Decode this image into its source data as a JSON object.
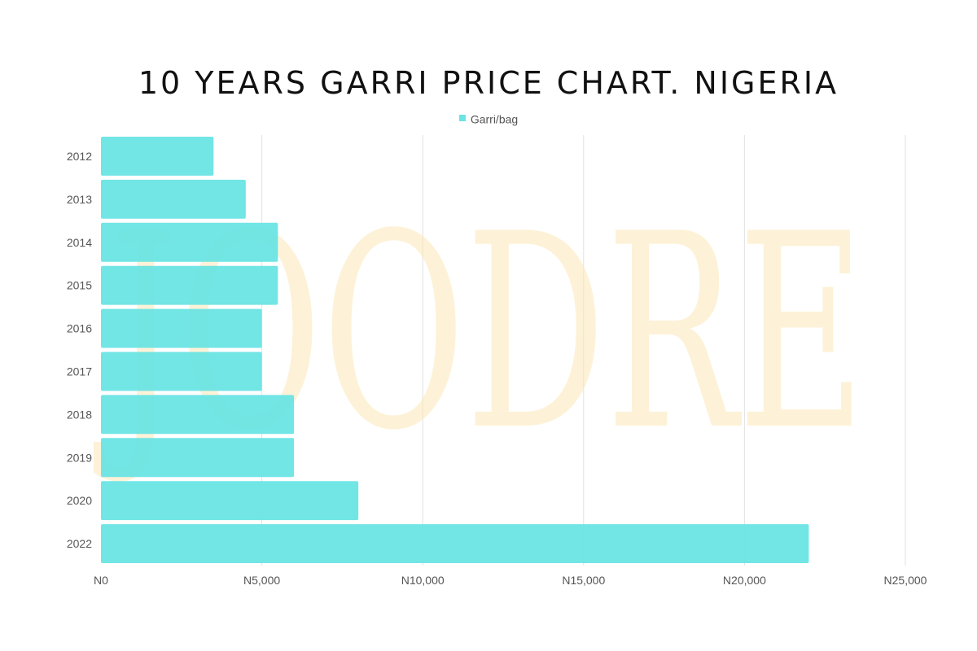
{
  "chart_data": {
    "type": "bar",
    "orientation": "horizontal",
    "title": "10 YEARS GARRI PRICE CHART. NIGERIA",
    "categories": [
      "2012",
      "2013",
      "2014",
      "2015",
      "2016",
      "2017",
      "2018",
      "2019",
      "2020",
      "2022"
    ],
    "series": [
      {
        "name": "Garri/bag",
        "values": [
          3500,
          4500,
          5500,
          5500,
          5000,
          5000,
          6000,
          6000,
          8000,
          22000
        ],
        "color": "#6ae4e4"
      }
    ],
    "xlim": [
      0,
      25000
    ],
    "x_ticks": [
      0,
      5000,
      10000,
      15000,
      20000,
      25000
    ],
    "x_tick_labels": [
      "N0",
      "N5,000",
      "N10,000",
      "N15,000",
      "N20,000",
      "N25,000"
    ],
    "xlabel": "",
    "ylabel": "",
    "grid": "vertical",
    "legend_position": "top-center",
    "watermark": "JOODRE",
    "watermark_color": "#fde7b0",
    "gridline_color": "#e2e2e2"
  }
}
